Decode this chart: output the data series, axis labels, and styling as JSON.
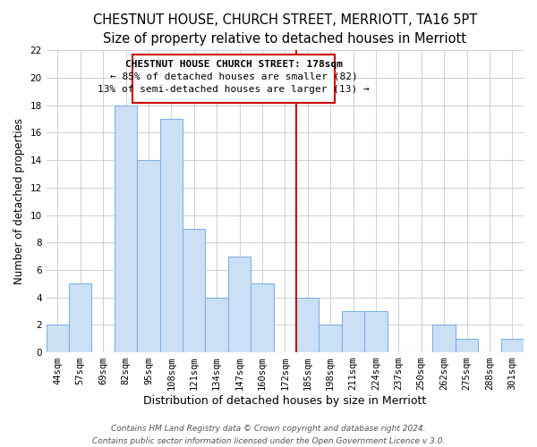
{
  "title": "CHESTNUT HOUSE, CHURCH STREET, MERRIOTT, TA16 5PT",
  "subtitle": "Size of property relative to detached houses in Merriott",
  "xlabel": "Distribution of detached houses by size in Merriott",
  "ylabel": "Number of detached properties",
  "bar_labels": [
    "44sqm",
    "57sqm",
    "69sqm",
    "82sqm",
    "95sqm",
    "108sqm",
    "121sqm",
    "134sqm",
    "147sqm",
    "160sqm",
    "172sqm",
    "185sqm",
    "198sqm",
    "211sqm",
    "224sqm",
    "237sqm",
    "250sqm",
    "262sqm",
    "275sqm",
    "288sqm",
    "301sqm"
  ],
  "bar_values": [
    2,
    5,
    0,
    18,
    14,
    17,
    9,
    4,
    7,
    5,
    0,
    4,
    2,
    3,
    3,
    0,
    0,
    2,
    1,
    0,
    1
  ],
  "bar_color": "#cce0f5",
  "bar_edge_color": "#7fb2e5",
  "vline_color": "#cc0000",
  "annotation_title": "CHESTNUT HOUSE CHURCH STREET: 178sqm",
  "annotation_line1": "← 85% of detached houses are smaller (82)",
  "annotation_line2": "13% of semi-detached houses are larger (13) →",
  "ylim": [
    0,
    22
  ],
  "yticks": [
    0,
    2,
    4,
    6,
    8,
    10,
    12,
    14,
    16,
    18,
    20,
    22
  ],
  "footer1": "Contains HM Land Registry data © Crown copyright and database right 2024.",
  "footer2": "Contains public sector information licensed under the Open Government Licence v 3.0.",
  "title_fontsize": 10.5,
  "subtitle_fontsize": 9.5,
  "xlabel_fontsize": 9,
  "ylabel_fontsize": 8.5,
  "tick_fontsize": 7.5,
  "annotation_fontsize": 8,
  "footer_fontsize": 6.5
}
